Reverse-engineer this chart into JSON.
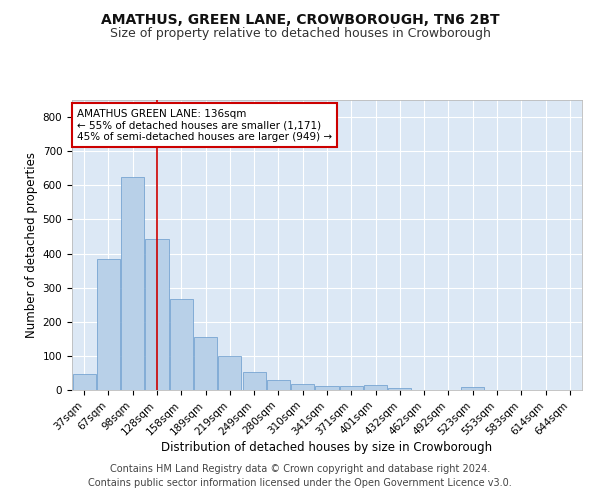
{
  "title": "AMATHUS, GREEN LANE, CROWBOROUGH, TN6 2BT",
  "subtitle": "Size of property relative to detached houses in Crowborough",
  "xlabel": "Distribution of detached houses by size in Crowborough",
  "ylabel": "Number of detached properties",
  "bar_labels": [
    "37sqm",
    "67sqm",
    "98sqm",
    "128sqm",
    "158sqm",
    "189sqm",
    "219sqm",
    "249sqm",
    "280sqm",
    "310sqm",
    "341sqm",
    "371sqm",
    "401sqm",
    "432sqm",
    "462sqm",
    "492sqm",
    "523sqm",
    "553sqm",
    "583sqm",
    "614sqm",
    "644sqm"
  ],
  "bar_values": [
    48,
    385,
    625,
    443,
    268,
    155,
    100,
    52,
    28,
    18,
    12,
    12,
    14,
    7,
    0,
    0,
    8,
    0,
    0,
    0,
    0
  ],
  "bar_color": "#b8d0e8",
  "bar_edge_color": "#6699cc",
  "background_color": "#dce8f5",
  "grid_color": "#ffffff",
  "vline_x_index": 3,
  "vline_color": "#cc0000",
  "annotation_text": "AMATHUS GREEN LANE: 136sqm\n← 55% of detached houses are smaller (1,171)\n45% of semi-detached houses are larger (949) →",
  "annotation_box_color": "#ffffff",
  "annotation_box_edge": "#cc0000",
  "ylim": [
    0,
    850
  ],
  "yticks": [
    0,
    100,
    200,
    300,
    400,
    500,
    600,
    700,
    800
  ],
  "footer": "Contains HM Land Registry data © Crown copyright and database right 2024.\nContains public sector information licensed under the Open Government Licence v3.0.",
  "title_fontsize": 10,
  "subtitle_fontsize": 9,
  "label_fontsize": 8.5,
  "tick_fontsize": 7.5,
  "footer_fontsize": 7,
  "annot_fontsize": 7.5
}
